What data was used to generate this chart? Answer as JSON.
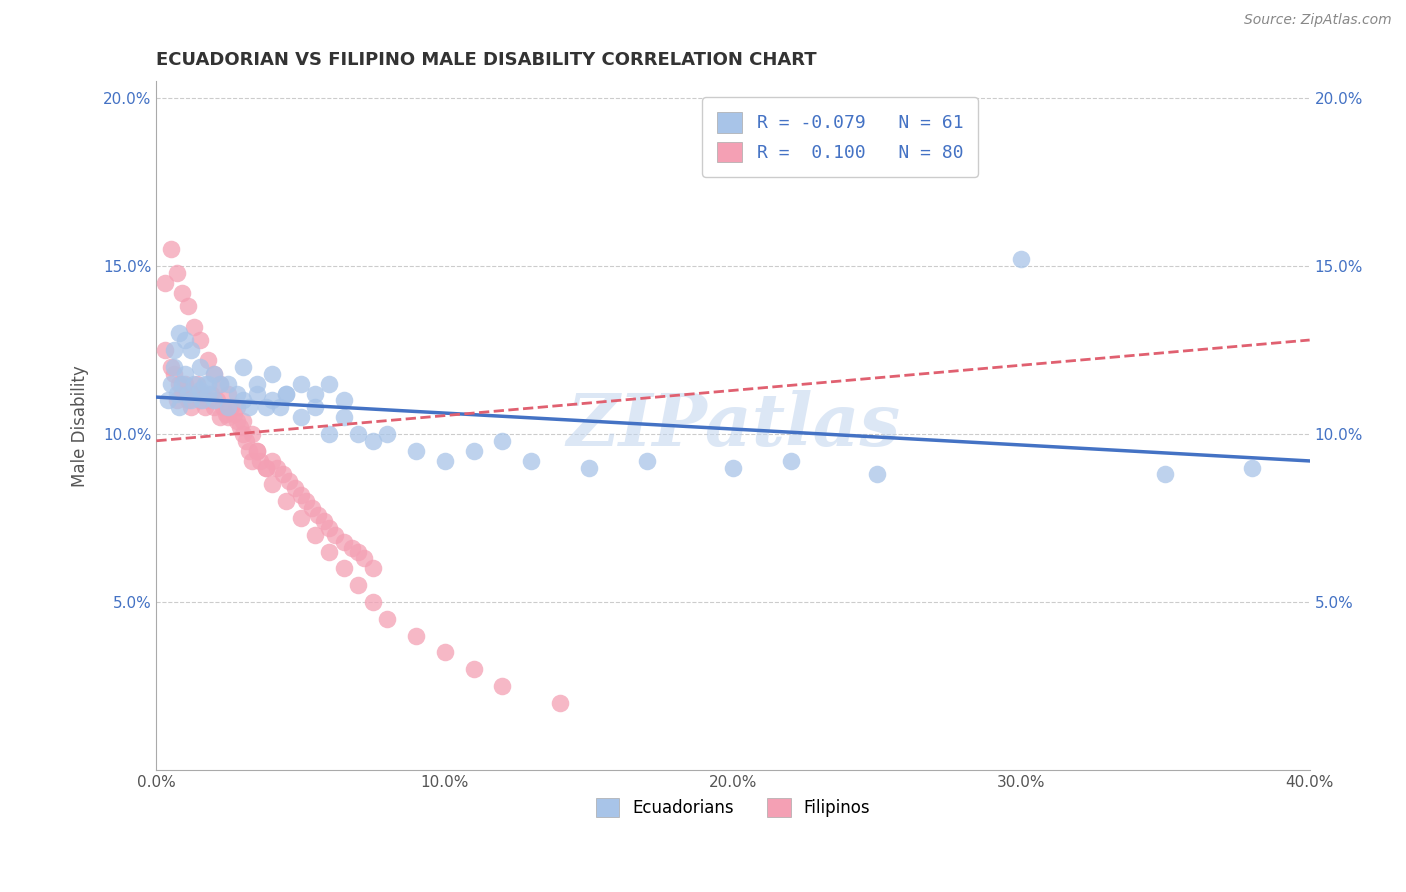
{
  "title": "ECUADORIAN VS FILIPINO MALE DISABILITY CORRELATION CHART",
  "source": "Source: ZipAtlas.com",
  "ylabel": "Male Disability",
  "x_min": 0.0,
  "x_max": 0.4,
  "y_min": 0.0,
  "y_max": 0.205,
  "x_ticks": [
    0.0,
    0.1,
    0.2,
    0.3,
    0.4
  ],
  "x_tick_labels": [
    "0.0%",
    "10.0%",
    "20.0%",
    "30.0%",
    "40.0%"
  ],
  "y_ticks": [
    0.05,
    0.1,
    0.15,
    0.2
  ],
  "y_tick_labels": [
    "5.0%",
    "10.0%",
    "15.0%",
    "20.0%"
  ],
  "ecuadorian_color": "#a8c4e8",
  "filipino_color": "#f4a0b4",
  "trend_ecuadorian_color": "#4472c4",
  "trend_filipino_color": "#e06070",
  "legend_r_ecuadorian": "-0.079",
  "legend_n_ecuadorian": "61",
  "legend_r_filipino": "0.100",
  "legend_n_filipino": "80",
  "watermark": "ZIPatlas",
  "ecuadorian_x": [
    0.004,
    0.005,
    0.006,
    0.007,
    0.008,
    0.009,
    0.01,
    0.011,
    0.012,
    0.013,
    0.015,
    0.016,
    0.017,
    0.018,
    0.02,
    0.022,
    0.025,
    0.028,
    0.03,
    0.032,
    0.035,
    0.038,
    0.04,
    0.043,
    0.045,
    0.05,
    0.055,
    0.06,
    0.065,
    0.07,
    0.075,
    0.08,
    0.09,
    0.1,
    0.11,
    0.12,
    0.13,
    0.15,
    0.17,
    0.2,
    0.22,
    0.25,
    0.3,
    0.35,
    0.38,
    0.006,
    0.008,
    0.01,
    0.012,
    0.015,
    0.018,
    0.02,
    0.025,
    0.03,
    0.035,
    0.04,
    0.045,
    0.05,
    0.055,
    0.06,
    0.065
  ],
  "ecuadorian_y": [
    0.11,
    0.115,
    0.12,
    0.112,
    0.108,
    0.115,
    0.118,
    0.112,
    0.11,
    0.115,
    0.113,
    0.11,
    0.115,
    0.112,
    0.11,
    0.115,
    0.108,
    0.112,
    0.11,
    0.108,
    0.112,
    0.108,
    0.11,
    0.108,
    0.112,
    0.105,
    0.108,
    0.1,
    0.105,
    0.1,
    0.098,
    0.1,
    0.095,
    0.092,
    0.095,
    0.098,
    0.092,
    0.09,
    0.092,
    0.09,
    0.092,
    0.088,
    0.152,
    0.088,
    0.09,
    0.125,
    0.13,
    0.128,
    0.125,
    0.12,
    0.115,
    0.118,
    0.115,
    0.12,
    0.115,
    0.118,
    0.112,
    0.115,
    0.112,
    0.115,
    0.11
  ],
  "filipino_x": [
    0.003,
    0.005,
    0.006,
    0.007,
    0.008,
    0.009,
    0.01,
    0.011,
    0.012,
    0.013,
    0.014,
    0.015,
    0.016,
    0.017,
    0.018,
    0.019,
    0.02,
    0.021,
    0.022,
    0.023,
    0.024,
    0.025,
    0.026,
    0.027,
    0.028,
    0.029,
    0.03,
    0.031,
    0.032,
    0.033,
    0.035,
    0.036,
    0.038,
    0.04,
    0.042,
    0.044,
    0.046,
    0.048,
    0.05,
    0.052,
    0.054,
    0.056,
    0.058,
    0.06,
    0.062,
    0.065,
    0.068,
    0.07,
    0.072,
    0.075,
    0.003,
    0.005,
    0.007,
    0.009,
    0.011,
    0.013,
    0.015,
    0.018,
    0.02,
    0.022,
    0.025,
    0.028,
    0.03,
    0.033,
    0.035,
    0.038,
    0.04,
    0.045,
    0.05,
    0.055,
    0.06,
    0.065,
    0.07,
    0.075,
    0.08,
    0.09,
    0.1,
    0.11,
    0.12,
    0.14
  ],
  "filipino_y": [
    0.125,
    0.12,
    0.118,
    0.11,
    0.115,
    0.112,
    0.115,
    0.11,
    0.108,
    0.112,
    0.115,
    0.11,
    0.112,
    0.108,
    0.11,
    0.112,
    0.108,
    0.11,
    0.105,
    0.108,
    0.106,
    0.105,
    0.108,
    0.106,
    0.104,
    0.102,
    0.1,
    0.098,
    0.095,
    0.092,
    0.095,
    0.092,
    0.09,
    0.092,
    0.09,
    0.088,
    0.086,
    0.084,
    0.082,
    0.08,
    0.078,
    0.076,
    0.074,
    0.072,
    0.07,
    0.068,
    0.066,
    0.065,
    0.063,
    0.06,
    0.145,
    0.155,
    0.148,
    0.142,
    0.138,
    0.132,
    0.128,
    0.122,
    0.118,
    0.115,
    0.112,
    0.108,
    0.104,
    0.1,
    0.095,
    0.09,
    0.085,
    0.08,
    0.075,
    0.07,
    0.065,
    0.06,
    0.055,
    0.05,
    0.045,
    0.04,
    0.035,
    0.03,
    0.025,
    0.02
  ]
}
